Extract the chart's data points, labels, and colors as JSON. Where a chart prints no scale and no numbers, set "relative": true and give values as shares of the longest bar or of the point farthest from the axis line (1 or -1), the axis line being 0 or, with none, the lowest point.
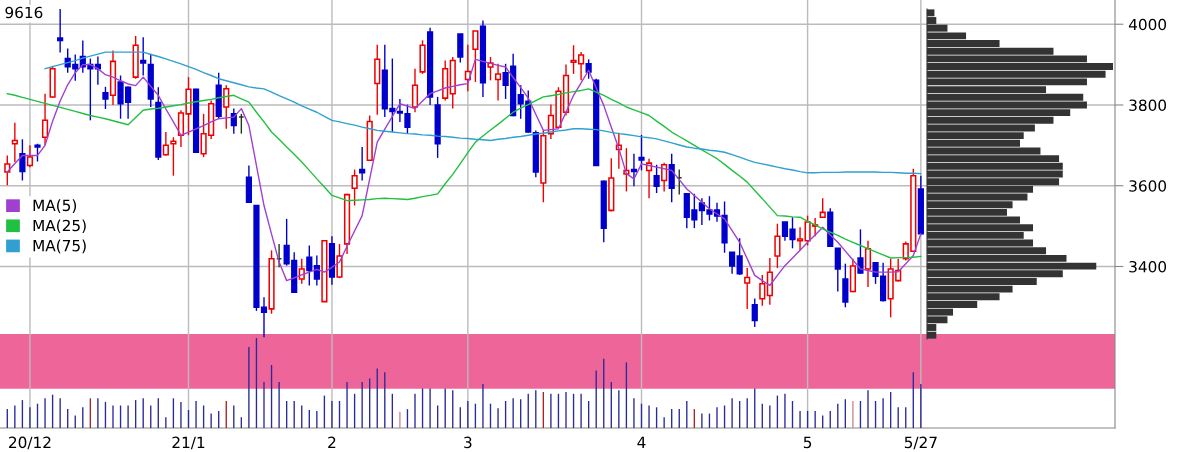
{
  "chart_data": [
    {
      "type": "candlestick",
      "title": "9616",
      "ylim": [
        3000,
        4060
      ],
      "yticks": [
        3400,
        3600,
        3800,
        4000
      ],
      "grid": true,
      "legend": "left",
      "categories": [
        null,
        null,
        null,
        "20/12",
        null,
        null,
        null,
        null,
        null,
        null,
        null,
        null,
        null,
        null,
        null,
        null,
        null,
        null,
        null,
        null,
        null,
        null,
        null,
        null,
        "21/1",
        null,
        null,
        null,
        null,
        null,
        null,
        null,
        null,
        null,
        null,
        null,
        null,
        null,
        null,
        null,
        null,
        null,
        null,
        "2",
        null,
        null,
        null,
        null,
        null,
        null,
        null,
        null,
        null,
        null,
        null,
        null,
        null,
        null,
        null,
        null,
        null,
        "3",
        null,
        null,
        null,
        null,
        null,
        null,
        null,
        null,
        null,
        null,
        null,
        null,
        null,
        null,
        null,
        null,
        null,
        null,
        null,
        null,
        null,
        null,
        "4",
        null,
        null,
        null,
        null,
        null,
        null,
        null,
        null,
        null,
        null,
        null,
        null,
        null,
        null,
        null,
        null,
        null,
        null,
        null,
        null,
        null,
        "5",
        null,
        null,
        null,
        null,
        null,
        null,
        null,
        null,
        null,
        null,
        null,
        null,
        null,
        null,
        "5/27"
      ],
      "ohlc": [
        [
          3634,
          3675,
          3601,
          3654
        ],
        [
          3704,
          3756,
          3659,
          3712
        ],
        [
          3679,
          3715,
          3613,
          3635
        ],
        [
          3650,
          3700,
          3646,
          3671
        ],
        [
          3700,
          3704,
          3660,
          3696
        ],
        [
          3720,
          3828,
          3700,
          3762
        ],
        [
          3820,
          3897,
          3818,
          3890
        ],
        [
          3966,
          4038,
          3930,
          3960
        ],
        [
          3915,
          3940,
          3880,
          3895
        ],
        [
          3900,
          3925,
          3860,
          3890
        ],
        [
          3920,
          3960,
          3880,
          3895
        ],
        [
          3900,
          3915,
          3762,
          3890
        ],
        [
          3900,
          3920,
          3850,
          3890
        ],
        [
          3830,
          3845,
          3790,
          3815
        ],
        [
          3824,
          3935,
          3800,
          3908
        ],
        [
          3857,
          3873,
          3766,
          3803
        ],
        [
          3844,
          3846,
          3766,
          3807
        ],
        [
          3869,
          3971,
          3865,
          3948
        ],
        [
          3910,
          3968,
          3873,
          3904
        ],
        [
          3900,
          3927,
          3795,
          3815
        ],
        [
          3806,
          3844,
          3664,
          3671
        ],
        [
          3677,
          3733,
          3675,
          3700
        ],
        [
          3704,
          3720,
          3625,
          3710
        ],
        [
          3725,
          3787,
          3696,
          3780
        ],
        [
          3778,
          3869,
          3725,
          3839
        ],
        [
          3839,
          3840,
          3682,
          3683
        ],
        [
          3679,
          3778,
          3671,
          3729
        ],
        [
          3725,
          3811,
          3716,
          3803
        ],
        [
          3849,
          3880,
          3767,
          3772
        ],
        [
          3795,
          3849,
          3741,
          3840
        ],
        [
          3778,
          3791,
          3729,
          3749
        ],
        [
          3770,
          3778,
          3729,
          3770
        ],
        [
          3621,
          3650,
          3558,
          3559
        ],
        [
          3551,
          3551,
          3290,
          3299
        ],
        [
          3299,
          3324,
          3225,
          3287
        ],
        [
          3295,
          3440,
          3283,
          3419
        ],
        [
          3419,
          3456,
          3398,
          3419
        ],
        [
          3452,
          3518,
          3402,
          3407
        ],
        [
          3415,
          3435,
          3335,
          3336
        ],
        [
          3369,
          3419,
          3357,
          3394
        ],
        [
          3423,
          3452,
          3353,
          3390
        ],
        [
          3402,
          3427,
          3353,
          3369
        ],
        [
          3313,
          3464,
          3313,
          3464
        ],
        [
          3456,
          3475,
          3355,
          3374
        ],
        [
          3374,
          3456,
          3371,
          3426
        ],
        [
          3456,
          3580,
          3431,
          3578
        ],
        [
          3594,
          3640,
          3551,
          3625
        ],
        [
          3640,
          3696,
          3613,
          3632
        ],
        [
          3663,
          3774,
          3661,
          3759
        ],
        [
          3853,
          3949,
          3776,
          3913
        ],
        [
          3886,
          3949,
          3770,
          3791
        ],
        [
          3791,
          3915,
          3733,
          3784
        ],
        [
          3784,
          3815,
          3758,
          3780
        ],
        [
          3778,
          3801,
          3729,
          3745
        ],
        [
          3795,
          3890,
          3782,
          3849
        ],
        [
          3882,
          3960,
          3877,
          3948
        ],
        [
          3981,
          3991,
          3800,
          3820
        ],
        [
          3800,
          3820,
          3669,
          3704
        ],
        [
          3817,
          3910,
          3811,
          3890
        ],
        [
          3828,
          3919,
          3791,
          3910
        ],
        [
          3976,
          3976,
          3905,
          3919
        ],
        [
          3863,
          3949,
          3834,
          3883
        ],
        [
          3938,
          3983,
          3857,
          3983
        ],
        [
          3995,
          4009,
          3820,
          3855
        ],
        [
          3894,
          3919,
          3861,
          3904
        ],
        [
          3863,
          3902,
          3811,
          3877
        ],
        [
          3880,
          3902,
          3815,
          3849
        ],
        [
          3896,
          3927,
          3772,
          3774
        ],
        [
          3825,
          3849,
          3766,
          3803
        ],
        [
          3809,
          3836,
          3731,
          3733
        ],
        [
          3731,
          3737,
          3621,
          3634
        ],
        [
          3607,
          3737,
          3559,
          3724
        ],
        [
          3729,
          3801,
          3716,
          3774
        ],
        [
          3745,
          3844,
          3743,
          3834
        ],
        [
          3782,
          3900,
          3774,
          3873
        ],
        [
          3906,
          3948,
          3877,
          3910
        ],
        [
          3902,
          3931,
          3861,
          3924
        ],
        [
          3902,
          3913,
          3865,
          3882
        ],
        [
          3861,
          3865,
          3650,
          3650
        ],
        [
          3611,
          3613,
          3460,
          3495
        ],
        [
          3539,
          3668,
          3536,
          3619
        ],
        [
          3690,
          3731,
          3642,
          3700
        ],
        [
          3629,
          3693,
          3586,
          3638
        ],
        [
          3640,
          3679,
          3599,
          3635
        ],
        [
          3670,
          3726,
          3638,
          3664
        ],
        [
          3638,
          3667,
          3569,
          3656
        ],
        [
          3625,
          3652,
          3582,
          3599
        ],
        [
          3613,
          3657,
          3586,
          3652
        ],
        [
          3652,
          3679,
          3559,
          3594
        ],
        [
          3620,
          3640,
          3578,
          3620
        ],
        [
          3580,
          3580,
          3495,
          3522
        ],
        [
          3540,
          3580,
          3495,
          3516
        ],
        [
          3557,
          3569,
          3503,
          3539
        ],
        [
          3540,
          3574,
          3514,
          3530
        ],
        [
          3540,
          3558,
          3511,
          3525
        ],
        [
          3526,
          3561,
          3434,
          3459
        ],
        [
          3435,
          3435,
          3382,
          3401
        ],
        [
          3426,
          3470,
          3379,
          3382
        ],
        [
          3359,
          3396,
          3295,
          3373
        ],
        [
          3305,
          3321,
          3250,
          3266
        ],
        [
          3320,
          3379,
          3303,
          3357
        ],
        [
          3328,
          3421,
          3305,
          3386
        ],
        [
          3426,
          3506,
          3396,
          3475
        ],
        [
          3510,
          3510,
          3464,
          3475
        ],
        [
          3492,
          3522,
          3445,
          3467
        ],
        [
          3464,
          3497,
          3440,
          3468
        ],
        [
          3464,
          3526,
          3452,
          3510
        ],
        [
          3500,
          3520,
          3475,
          3503
        ],
        [
          3522,
          3569,
          3522,
          3534
        ],
        [
          3534,
          3544,
          3448,
          3450
        ],
        [
          3445,
          3445,
          3338,
          3394
        ],
        [
          3369,
          3407,
          3299,
          3312
        ],
        [
          3338,
          3419,
          3336,
          3401
        ],
        [
          3421,
          3492,
          3382,
          3384
        ],
        [
          3394,
          3464,
          3349,
          3444
        ],
        [
          3409,
          3409,
          3357,
          3376
        ],
        [
          3376,
          3409,
          3313,
          3316
        ],
        [
          3320,
          3419,
          3274,
          3394
        ],
        [
          3365,
          3419,
          3363,
          3390
        ],
        [
          3419,
          3462,
          3415,
          3456
        ],
        [
          3438,
          3642,
          3436,
          3625
        ],
        [
          3592,
          3625,
          3478,
          3481
        ]
      ],
      "colors": [
        "#ee0000",
        "#ee0000",
        "#0000cc",
        "#ee0000",
        "#0000cc",
        "#ee0000",
        "#ee0000",
        "#0000cc",
        "#0000cc",
        "#0000cc",
        "#0000cc",
        "#0000cc",
        "#0000cc",
        "#0000cc",
        "#ee0000",
        "#0000cc",
        "#0000cc",
        "#ee0000",
        "#0000cc",
        "#0000cc",
        "#0000cc",
        "#ee0000",
        "#ee0000",
        "#ee0000",
        "#ee0000",
        "#0000cc",
        "#ee0000",
        "#ee0000",
        "#0000cc",
        "#ee0000",
        "#0000cc",
        "#1a3a1a",
        "#0000cc",
        "#0000cc",
        "#0000cc",
        "#ee0000",
        "#1a3a1a",
        "#0000cc",
        "#0000cc",
        "#ee0000",
        "#0000cc",
        "#0000cc",
        "#ee0000",
        "#0000cc",
        "#ee0000",
        "#ee0000",
        "#ee0000",
        "#0000cc",
        "#ee0000",
        "#ee0000",
        "#0000cc",
        "#0000cc",
        "#0000cc",
        "#0000cc",
        "#ee0000",
        "#ee0000",
        "#0000cc",
        "#0000cc",
        "#ee0000",
        "#ee0000",
        "#0000cc",
        "#ee0000",
        "#ee0000",
        "#0000cc",
        "#ee0000",
        "#ee0000",
        "#0000cc",
        "#0000cc",
        "#0000cc",
        "#0000cc",
        "#0000cc",
        "#ee0000",
        "#ee0000",
        "#ee0000",
        "#ee0000",
        "#ee0000",
        "#ee0000",
        "#0000cc",
        "#0000cc",
        "#0000cc",
        "#ee0000",
        "#ee0000",
        "#ee0000",
        "#0000cc",
        "#0000cc",
        "#ee0000",
        "#0000cc",
        "#ee0000",
        "#0000cc",
        "#1a3a1a",
        "#0000cc",
        "#0000cc",
        "#0000cc",
        "#0000cc",
        "#0000cc",
        "#0000cc",
        "#0000cc",
        "#0000cc",
        "#ee0000",
        "#0000cc",
        "#ee0000",
        "#ee0000",
        "#ee0000",
        "#0000cc",
        "#0000cc",
        "#ee0000",
        "#ee0000",
        "#ee0000",
        "#ee0000",
        "#0000cc",
        "#0000cc",
        "#0000cc",
        "#ee0000",
        "#0000cc",
        "#ee0000",
        "#0000cc",
        "#0000cc",
        "#ee0000",
        "#ee0000",
        "#ee0000",
        "#ee0000",
        "#0000cc"
      ],
      "bands": [
        {
          "axis": "y",
          "from": 3097,
          "to": 3233,
          "color": "#ee6699"
        }
      ],
      "series": [
        {
          "name": "MA(5)",
          "type": "line",
          "color": "#a040d0",
          "values": [
            3634,
            3655,
            3675,
            3675,
            3675,
            3700,
            3760,
            3810,
            3850,
            3880,
            3900,
            3900,
            3890,
            3875,
            3869,
            3860,
            3852,
            3848,
            3869,
            3846,
            3824,
            3790,
            3758,
            3725,
            3733,
            3741,
            3749,
            3758,
            3766,
            3768,
            3770,
            3791,
            3749,
            3650,
            3551,
            3480,
            3411,
            3365,
            3372,
            3379,
            3386,
            3393,
            3386,
            3398,
            3411,
            3450,
            3488,
            3526,
            3617,
            3708,
            3740,
            3772,
            3803,
            3797,
            3791,
            3810,
            3828,
            3835,
            3842,
            3846,
            3850,
            3853,
            3913,
            3908,
            3903,
            3898,
            3894,
            3868,
            3843,
            3817,
            3777,
            3737,
            3739,
            3741,
            3782,
            3824,
            3855,
            3886,
            3842,
            3799,
            3745,
            3692,
            3630,
            3617,
            3654,
            3650,
            3646,
            3642,
            3638,
            3615,
            3592,
            3576,
            3559,
            3543,
            3530,
            3518,
            3489,
            3460,
            3419,
            3378,
            3365,
            3353,
            3378,
            3402,
            3421,
            3440,
            3460,
            3478,
            3497,
            3478,
            3460,
            3438,
            3416,
            3394,
            3390,
            3386,
            3386,
            3386,
            3387,
            3407,
            3427,
            3481
          ]
        },
        {
          "name": "MA(25)",
          "type": "line",
          "color": "#20c040",
          "values": [
            3828,
            3824,
            3819,
            3814,
            3809,
            3804,
            3799,
            3794,
            3789,
            3784,
            3779,
            3774,
            3770,
            3766,
            3761,
            3756,
            3751,
            3769,
            3787,
            3790,
            3792,
            3795,
            3798,
            3801,
            3805,
            3808,
            3811,
            3814,
            3818,
            3821,
            3824,
            3815,
            3807,
            3782,
            3758,
            3733,
            3715,
            3696,
            3678,
            3659,
            3638,
            3617,
            3597,
            3576,
            3570,
            3563,
            3564,
            3565,
            3566,
            3568,
            3569,
            3568,
            3567,
            3566,
            3569,
            3573,
            3576,
            3580,
            3605,
            3628,
            3655,
            3682,
            3708,
            3723,
            3738,
            3752,
            3767,
            3782,
            3792,
            3801,
            3811,
            3820,
            3823,
            3826,
            3830,
            3833,
            3836,
            3840,
            3832,
            3824,
            3814,
            3805,
            3795,
            3788,
            3781,
            3774,
            3760,
            3747,
            3733,
            3722,
            3711,
            3700,
            3689,
            3678,
            3667,
            3653,
            3638,
            3624,
            3609,
            3588,
            3568,
            3547,
            3526,
            3525,
            3523,
            3522,
            3512,
            3503,
            3493,
            3485,
            3477,
            3468,
            3460,
            3452,
            3444,
            3436,
            3429,
            3421,
            3422,
            3422,
            3423,
            3425
          ]
        },
        {
          "name": "MA(75)",
          "type": "line",
          "color": "#30a0d0",
          "values": [
            null,
            null,
            null,
            null,
            null,
            3890,
            3895,
            3900,
            3905,
            3910,
            3916,
            3921,
            3926,
            3931,
            3931,
            3931,
            3931,
            3931,
            3931,
            3925,
            3920,
            3914,
            3908,
            3902,
            3895,
            3888,
            3880,
            3873,
            3865,
            3860,
            3855,
            3850,
            3845,
            3842,
            3840,
            3832,
            3823,
            3815,
            3807,
            3798,
            3790,
            3782,
            3772,
            3762,
            3758,
            3754,
            3750,
            3745,
            3741,
            3737,
            3735,
            3733,
            3731,
            3729,
            3728,
            3726,
            3725,
            3723,
            3722,
            3720,
            3718,
            3717,
            3715,
            3714,
            3712,
            3715,
            3717,
            3720,
            3722,
            3725,
            3728,
            3730,
            3733,
            3736,
            3738,
            3741,
            3741,
            3740,
            3739,
            3736,
            3732,
            3729,
            3727,
            3724,
            3721,
            3719,
            3716,
            3711,
            3706,
            3701,
            3696,
            3693,
            3691,
            3688,
            3686,
            3683,
            3677,
            3671,
            3664,
            3658,
            3654,
            3650,
            3646,
            3642,
            3639,
            3635,
            3632,
            3632,
            3633,
            3633,
            3633,
            3634,
            3634,
            3634,
            3634,
            3634,
            3633,
            3633,
            3632,
            3631,
            3631,
            3630
          ]
        }
      ]
    },
    {
      "type": "bar",
      "relative": true,
      "tick_labels": false,
      "categories": [
        null,
        null,
        null,
        null,
        null,
        null,
        null,
        null,
        null,
        null,
        null,
        null,
        null,
        null,
        null,
        null,
        null,
        null,
        null,
        null,
        null,
        null,
        null,
        null,
        null,
        null,
        null,
        null,
        null,
        null,
        null,
        null,
        null,
        null,
        null,
        null,
        null,
        null,
        null,
        null,
        null,
        null,
        null,
        null,
        null,
        null,
        null,
        null,
        null,
        null,
        null,
        null,
        null,
        null,
        null,
        null,
        null,
        null,
        null,
        null,
        null,
        null,
        null,
        null,
        null,
        null,
        null,
        null,
        null,
        null,
        null,
        null,
        null,
        null,
        null,
        null,
        null,
        null,
        null,
        null,
        null,
        null,
        null,
        null,
        null,
        null,
        null,
        null,
        null,
        null,
        null,
        null,
        null,
        null,
        null,
        null,
        null,
        null,
        null,
        null,
        null,
        null,
        null,
        null,
        null,
        null,
        null,
        null,
        null,
        null,
        null,
        null,
        null,
        null,
        null,
        null,
        null,
        null,
        null,
        null,
        null,
        null
      ],
      "values": [
        0.21,
        0.25,
        0.31,
        0.23,
        0.27,
        0.33,
        0.37,
        0.33,
        0.21,
        0.14,
        0.23,
        0.33,
        0.33,
        0.29,
        0.25,
        0.25,
        0.25,
        0.31,
        0.33,
        0.25,
        0.33,
        0.12,
        0.33,
        0.29,
        0.2,
        0.3,
        0.25,
        0.16,
        0.19,
        0.3,
        0.25,
        0.12,
        0.9,
        1,
        0.51,
        0.7,
        0.51,
        0.3,
        0.3,
        0.25,
        0.2,
        0.19,
        0.36,
        0.3,
        0.3,
        0.51,
        0.38,
        0.51,
        0.55,
        0.66,
        0.62,
        0.38,
        0.18,
        0.21,
        0.38,
        0.44,
        0.44,
        0.25,
        0.44,
        0.42,
        0.23,
        0.3,
        0.27,
        0.49,
        0.27,
        0.22,
        0.3,
        0.33,
        0.32,
        0.38,
        0.42,
        0.4,
        0.38,
        0.38,
        0.4,
        0.38,
        0.38,
        0.3,
        0.64,
        0.77,
        0.51,
        0.42,
        0.73,
        0.33,
        0.27,
        0.25,
        0.23,
        0.12,
        0.21,
        0.21,
        0.3,
        0.21,
        0.16,
        0.16,
        0.23,
        0.25,
        0.33,
        0.3,
        0.33,
        0.44,
        0.27,
        0.25,
        0.36,
        0.38,
        0.3,
        0.19,
        0.19,
        0.19,
        0.14,
        0.19,
        0.27,
        0.32,
        0.3,
        0.3,
        0.42,
        0.3,
        0.33,
        0.4,
        0.23,
        0.23,
        0.62,
        0.49
      ],
      "colors": [
        "#2a2a9a",
        "#2a2a9a",
        "#2a2a9a",
        "#2a2a9a",
        "#2a2a9a",
        "#2a2a9a",
        "#2a2a9a",
        "#2a2a9a",
        "#2a2a9a",
        "#2a2a9a",
        "#2a2a9a",
        "#aa2222",
        "#2a2a9a",
        "#2a2a9a",
        "#2a2a9a",
        "#2a2a9a",
        "#2a2a9a",
        "#2a2a9a",
        "#2a2a9a",
        "#2a2a9a",
        "#2a2a9a",
        "#2a2a9a",
        "#2a2a9a",
        "#2a2a9a",
        "#2a2a9a",
        "#2a2a9a",
        "#2a2a9a",
        "#2a2a9a",
        "#2a2a9a",
        "#aa2222",
        "#2a2a9a",
        "#2a2a9a",
        "#2a2a9a",
        "#2a2a9a",
        "#2a2a9a",
        "#2a2a9a",
        "#2a2a9a",
        "#2a2a9a",
        "#2a2a9a",
        "#2a2a9a",
        "#2a2a9a",
        "#2a2a9a",
        "#2a2a9a",
        "#2a2a9a",
        "#2a2a9a",
        "#2a2a9a",
        "#2a2a9a",
        "#2a2a9a",
        "#2a2a9a",
        "#2a2a9a",
        "#2a2a9a",
        "#2a2a9a",
        "#cc8888",
        "#2a2a9a",
        "#2a2a9a",
        "#2a2a9a",
        "#2a2a9a",
        "#2a2a9a",
        "#2a2a9a",
        "#2a2a9a",
        "#2a2a9a",
        "#2a2a9a",
        "#2a2a9a",
        "#2a2a9a",
        "#2a2a9a",
        "#2a2a9a",
        "#2a2a9a",
        "#2a2a9a",
        "#2a2a9a",
        "#2a2a9a",
        "#2a2a9a",
        "#aa2222",
        "#2a2a9a",
        "#2a2a9a",
        "#2a2a9a",
        "#2a2a9a",
        "#2a2a9a",
        "#2a2a9a",
        "#2a2a9a",
        "#2a2a9a",
        "#2a2a9a",
        "#2a2a9a",
        "#2a2a9a",
        "#2a2a9a",
        "#2a2a9a",
        "#2a2a9a",
        "#2a2a9a",
        "#2a2a9a",
        "#2a2a9a",
        "#2a2a9a",
        "#2a2a9a",
        "#aa2222",
        "#2a2a9a",
        "#2a2a9a",
        "#2a2a9a",
        "#2a2a9a",
        "#2a2a9a",
        "#2a2a9a",
        "#2a2a9a",
        "#2a2a9a",
        "#2a2a9a",
        "#2a2a9a",
        "#2a2a9a",
        "#2a2a9a",
        "#2a2a9a",
        "#2a2a9a",
        "#2a2a9a",
        "#2a2a9a",
        "#2a2a9a",
        "#2a2a9a",
        "#2a2a9a",
        "#2a2a9a",
        "#cc8888",
        "#2a2a9a",
        "#2a2a9a",
        "#2a2a9a",
        "#2a2a9a",
        "#2a2a9a",
        "#2a2a9a",
        "#2a2a9a",
        "#2a2a9a",
        "#2a2a9a"
      ]
    },
    {
      "type": "bar",
      "orientation": "horizontal",
      "relative": true,
      "tick_labels": false,
      "color": "#333333",
      "categories": [
        null,
        null,
        null,
        null,
        null,
        null,
        null,
        null,
        null,
        null,
        null,
        null,
        null,
        null,
        null,
        null,
        null,
        null,
        null,
        null,
        null,
        null,
        null,
        null,
        null,
        null,
        null,
        null,
        null,
        null,
        null,
        null,
        null,
        null,
        null,
        null,
        null,
        null,
        null,
        null,
        null,
        null,
        null
      ],
      "values": [
        0.04,
        0.05,
        0.11,
        0.21,
        0.39,
        0.68,
        0.86,
        1,
        0.96,
        0.86,
        0.64,
        0.84,
        0.86,
        0.77,
        0.68,
        0.58,
        0.52,
        0.5,
        0.61,
        0.71,
        0.73,
        0.73,
        0.71,
        0.57,
        0.54,
        0.46,
        0.43,
        0.5,
        0.57,
        0.52,
        0.57,
        0.64,
        0.75,
        0.91,
        0.73,
        0.59,
        0.46,
        0.39,
        0.27,
        0.14,
        0.11,
        0.05,
        0.05
      ]
    }
  ]
}
